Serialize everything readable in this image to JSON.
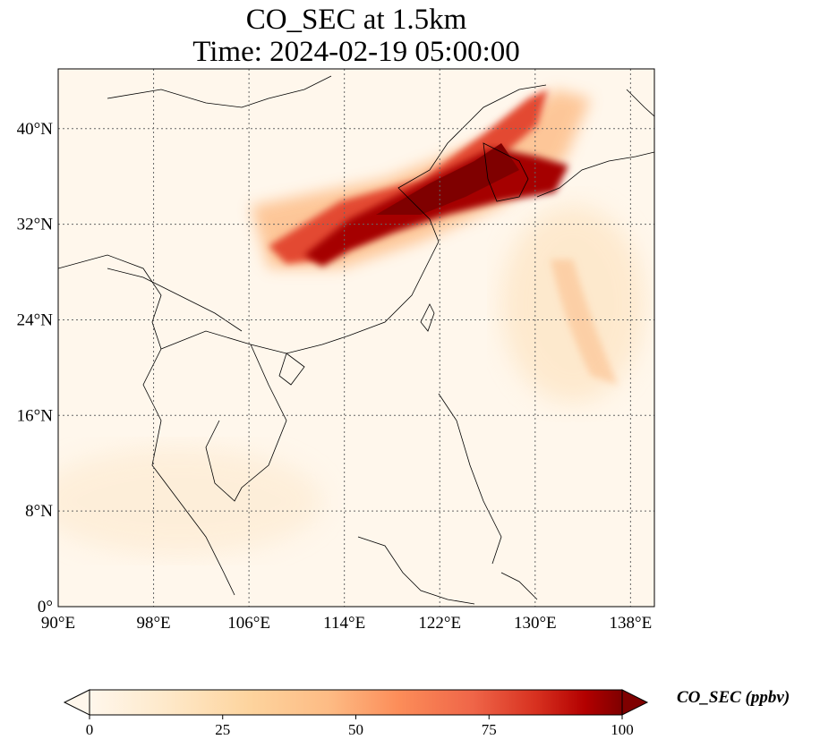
{
  "title": {
    "line1": "CO_SEC at 1.5km",
    "line2": "Time: 2024-02-19 05:00:00"
  },
  "map": {
    "lon_ticks": [
      "90°E",
      "98°E",
      "106°E",
      "114°E",
      "122°E",
      "130°E",
      "138°E"
    ],
    "lat_ticks": [
      "40°N",
      "32°N",
      "24°N",
      "16°N",
      "8°N",
      "0°"
    ],
    "gridlines": "dotted",
    "extent": {
      "lon_min": 90,
      "lon_max": 140,
      "lat_min": 0,
      "lat_max": 45
    }
  },
  "colorbar": {
    "label": "CO_SEC (ppbv)",
    "ticks": [
      "0",
      "25",
      "50",
      "75",
      "100"
    ],
    "colormap": "OrRd",
    "range": [
      0,
      100
    ],
    "extend": "both"
  },
  "colors": {
    "low": "#fff7ec",
    "mid": "#fc8d59",
    "high": "#7f0000",
    "grid": "#666666"
  }
}
